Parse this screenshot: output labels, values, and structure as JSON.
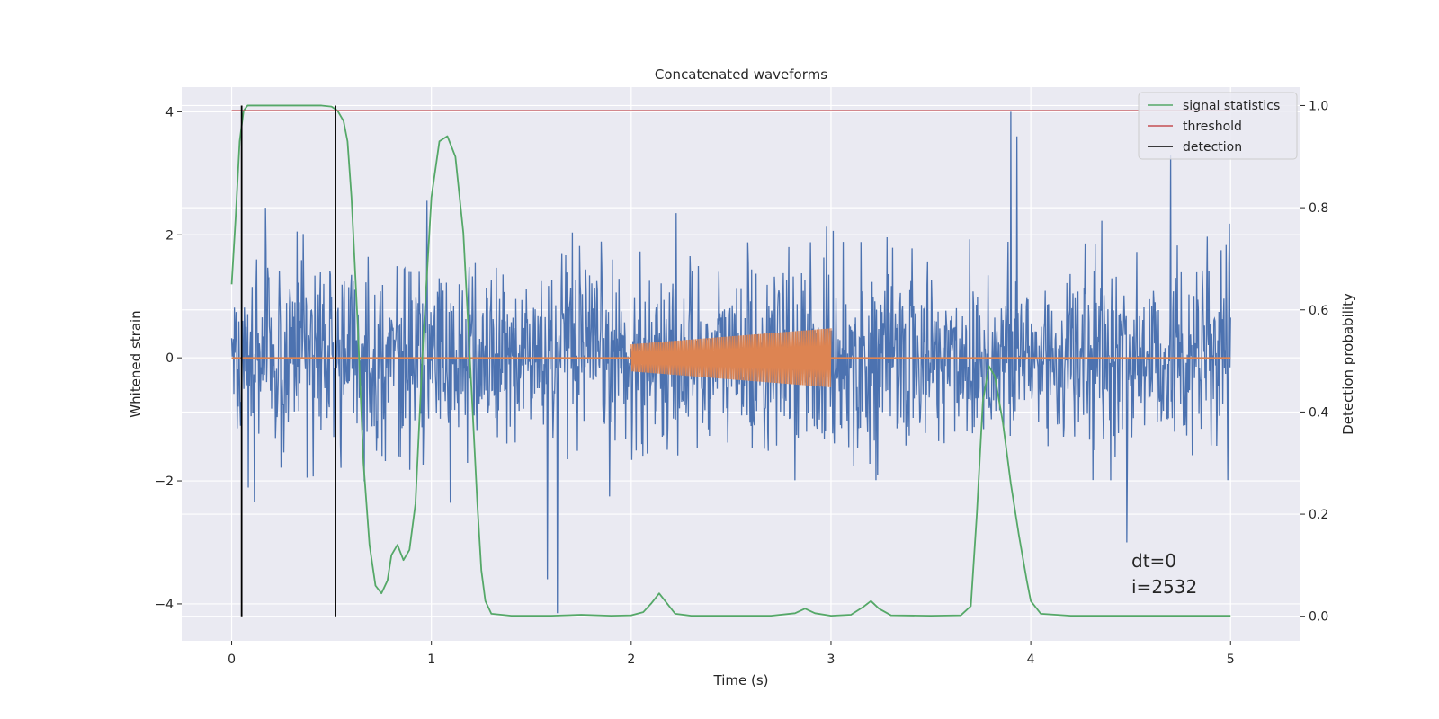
{
  "chart_data": {
    "type": "line",
    "title": "Concatenated waveforms",
    "xlabel": "Time (s)",
    "ylabel": "Whitened strain",
    "y2label": "Detection probability",
    "xlim": [
      -0.25,
      5.35
    ],
    "ylim": [
      -4.6,
      4.4
    ],
    "y2lim": [
      -0.048,
      1.036
    ],
    "x_ticks": [
      "0",
      "1",
      "2",
      "3",
      "4",
      "5"
    ],
    "x_tick_values": [
      0,
      1,
      2,
      3,
      4,
      5
    ],
    "y_ticks": [
      "−4",
      "−2",
      "0",
      "2",
      "4"
    ],
    "y_tick_values": [
      -4,
      -2,
      0,
      2,
      4
    ],
    "y2_ticks": [
      "0.0",
      "0.2",
      "0.4",
      "0.6",
      "0.8",
      "1.0"
    ],
    "y2_tick_values": [
      0.0,
      0.2,
      0.4,
      0.6,
      0.8,
      1.0
    ],
    "grid": true,
    "legend_position": "top-right",
    "colors": {
      "noise": "#4c72b0",
      "injection": "#dd8452",
      "signal": "#55a868",
      "threshold": "#c44e52",
      "detection": "#000000",
      "plot_bg": "#eaeaf2",
      "grid": "#ffffff"
    },
    "noise": {
      "x_range": [
        0,
        5
      ],
      "std": 0.75,
      "samples": 1800,
      "spikes": [
        {
          "x": 3.9,
          "y": 4.0
        },
        {
          "x": 1.63,
          "y": -4.15
        },
        {
          "x": 1.58,
          "y": -3.6
        },
        {
          "x": 4.48,
          "y": -3.0
        },
        {
          "x": 3.93,
          "y": 3.6
        },
        {
          "x": 4.7,
          "y": 3.3
        }
      ]
    },
    "injection": {
      "x_range": [
        2.0,
        3.0
      ],
      "amp_start": 0.22,
      "amp_end": 0.48,
      "cycles": 130,
      "baseline": 0
    },
    "series": [
      {
        "name": "signal statistics",
        "axis": "right",
        "x": [
          0.0,
          0.02,
          0.04,
          0.06,
          0.08,
          0.1,
          0.15,
          0.25,
          0.35,
          0.45,
          0.5,
          0.53,
          0.56,
          0.58,
          0.6,
          0.63,
          0.66,
          0.69,
          0.72,
          0.75,
          0.78,
          0.8,
          0.83,
          0.86,
          0.89,
          0.92,
          0.96,
          1.0,
          1.04,
          1.08,
          1.12,
          1.16,
          1.2,
          1.23,
          1.25,
          1.27,
          1.3,
          1.4,
          1.6,
          1.75,
          1.9,
          2.0,
          2.06,
          2.1,
          2.14,
          2.18,
          2.22,
          2.3,
          2.5,
          2.7,
          2.82,
          2.87,
          2.92,
          3.0,
          3.1,
          3.16,
          3.2,
          3.24,
          3.3,
          3.5,
          3.65,
          3.7,
          3.73,
          3.76,
          3.79,
          3.82,
          3.86,
          3.9,
          3.94,
          3.98,
          4.0,
          4.05,
          4.2,
          4.5,
          4.8,
          5.0
        ],
        "values": [
          0.65,
          0.78,
          0.93,
          0.99,
          1.0,
          1.0,
          1.0,
          1.0,
          1.0,
          1.0,
          0.998,
          0.99,
          0.97,
          0.93,
          0.82,
          0.58,
          0.3,
          0.14,
          0.06,
          0.045,
          0.07,
          0.12,
          0.14,
          0.11,
          0.13,
          0.22,
          0.55,
          0.82,
          0.93,
          0.94,
          0.9,
          0.75,
          0.45,
          0.22,
          0.09,
          0.03,
          0.005,
          0.001,
          0.001,
          0.003,
          0.001,
          0.002,
          0.008,
          0.025,
          0.045,
          0.025,
          0.005,
          0.001,
          0.001,
          0.001,
          0.006,
          0.015,
          0.006,
          0.001,
          0.003,
          0.018,
          0.03,
          0.015,
          0.002,
          0.001,
          0.002,
          0.02,
          0.2,
          0.42,
          0.49,
          0.47,
          0.38,
          0.26,
          0.16,
          0.07,
          0.03,
          0.005,
          0.001,
          0.001,
          0.001,
          0.001
        ]
      },
      {
        "name": "threshold",
        "axis": "right",
        "x": [
          0,
          5
        ],
        "values": [
          0.99,
          0.99
        ]
      },
      {
        "name": "detection",
        "axis": "right",
        "x": [
          0.05,
          0.52
        ],
        "vertical_lines": true
      }
    ],
    "annotations": [
      "dt=0",
      "i=2532"
    ]
  }
}
